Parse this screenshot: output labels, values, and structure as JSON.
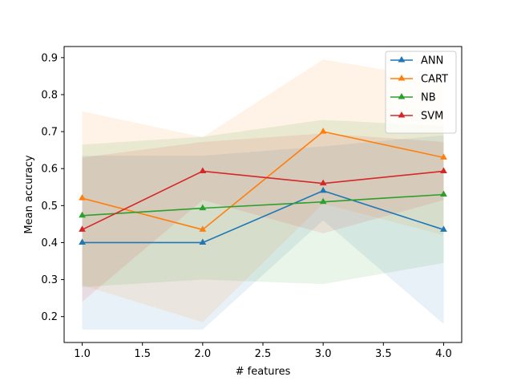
{
  "chart_data": {
    "type": "line",
    "title": "",
    "xlabel": "# features",
    "ylabel": "Mean accuracy",
    "x": [
      1.0,
      2.0,
      3.0,
      4.0
    ],
    "xlim": [
      0.85,
      4.15
    ],
    "ylim": [
      0.13,
      0.93
    ],
    "xticks": [
      "1.0",
      "1.5",
      "2.0",
      "2.5",
      "3.0",
      "3.5",
      "4.0"
    ],
    "yticks": [
      "0.2",
      "0.3",
      "0.4",
      "0.5",
      "0.6",
      "0.7",
      "0.8",
      "0.9"
    ],
    "grid": false,
    "legend_position": "top-right",
    "marker": "triangle",
    "series": [
      {
        "name": "ANN",
        "color": "#1f77b4",
        "values": [
          0.4,
          0.4,
          0.54,
          0.435
        ],
        "band_lower": [
          0.165,
          0.165,
          0.46,
          0.18
        ],
        "band_upper": [
          0.635,
          0.635,
          0.66,
          0.69
        ]
      },
      {
        "name": "CART",
        "color": "#ff7f0e",
        "values": [
          0.52,
          0.435,
          0.7,
          0.63
        ],
        "band_lower": [
          0.285,
          0.185,
          0.505,
          0.42
        ],
        "band_upper": [
          0.755,
          0.685,
          0.895,
          0.84
        ]
      },
      {
        "name": "NB",
        "color": "#2ca02c",
        "values": [
          0.473,
          0.493,
          0.51,
          0.53
        ],
        "band_lower": [
          0.28,
          0.3,
          0.288,
          0.345
        ],
        "band_upper": [
          0.665,
          0.686,
          0.732,
          0.715
        ]
      },
      {
        "name": "SVM",
        "color": "#d62728",
        "values": [
          0.435,
          0.593,
          0.56,
          0.593
        ],
        "band_lower": [
          0.24,
          0.515,
          0.425,
          0.515
        ],
        "band_upper": [
          0.63,
          0.672,
          0.695,
          0.672
        ]
      }
    ]
  }
}
